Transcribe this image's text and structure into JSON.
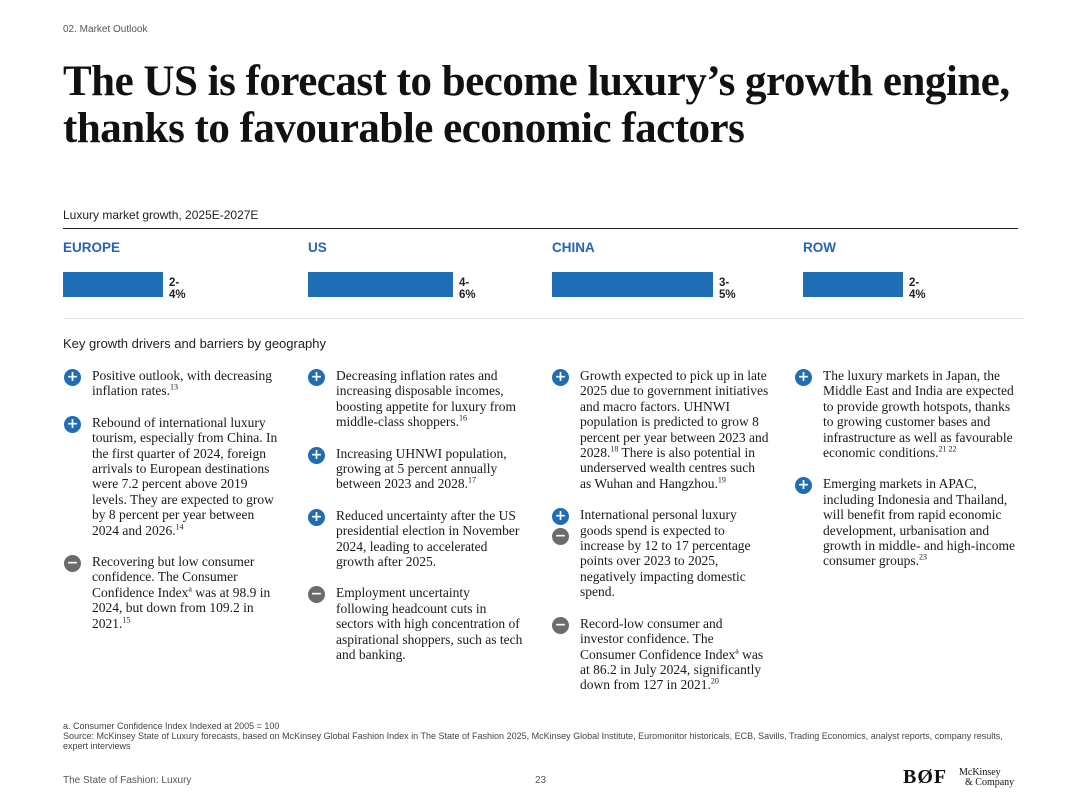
{
  "section_label": "02. Market Outlook",
  "headline": "The US is forecast to become luxury’s growth engine, thanks to favourable economic factors",
  "chart_title": "Luxury market growth, 2025E-2027E",
  "chart_data": {
    "type": "bar",
    "title": "Luxury market growth, 2025E-2027E",
    "categories": [
      "EUROPE",
      "US",
      "CHINA",
      "ROW"
    ],
    "ranges": [
      [
        2,
        4
      ],
      [
        4,
        6
      ],
      [
        3,
        5
      ],
      [
        2,
        4
      ]
    ],
    "labels": [
      "2-4%",
      "4-6%",
      "3-5%",
      "2-4%"
    ],
    "unit": "%"
  },
  "colors": {
    "accent": "#2563b8",
    "bar": "#1f6db5",
    "plus": "#1f6db5",
    "minus": "#6b6b6b"
  },
  "drivers_title": "Key growth drivers and barriers by geography",
  "drivers": {
    "europe": [
      {
        "text": "Positive outlook, with decreasing inflation rates.",
        "sup": "13"
      },
      {
        "text": "Rebound of international luxury tourism, especially from China. In the first quarter of 2024, foreign arrivals to European destinations were 7.2 percent above 2019 levels. They are expected to grow by 8 percent per year between 2024 and 2026.",
        "sup": "14"
      },
      {
        "text_a": "Recovering but low consumer confidence. The Consumer Confidence Index",
        "sup_a": "a",
        "text_b": " was at 98.9 in 2024, but down from 109.2 in 2021.",
        "sup": "15"
      }
    ],
    "us": [
      {
        "text": "Decreasing inflation rates and increasing disposable incomes, boosting appetite for luxury from middle-class shoppers.",
        "sup": "16"
      },
      {
        "text": "Increasing UHNWI population, growing at 5 percent annually between 2023 and 2028.",
        "sup": "17"
      },
      {
        "text": "Reduced uncertainty after the US presidential election in November 2024, leading to accelerated growth after 2025."
      },
      {
        "text": "Employment uncertainty following headcount cuts in sectors with high concentration of aspirational shoppers, such as tech and banking."
      }
    ],
    "china": [
      {
        "text_a": "Growth expected to pick up in late 2025 due to government initiatives and macro factors. UHNWI population is predicted to grow 8 percent per year between 2023 and 2028.",
        "sup_a": "18",
        "text_b": " There is also potential in underserved wealth centres such as Wuhan and Hangzhou.",
        "sup": "19"
      },
      {
        "text": "International personal luxury goods spend is expected to increase by 12 to 17 percentage points over 2023 to 2025, negatively impacting domestic spend."
      },
      {
        "text_a": "Record-low consumer and investor confidence. The Consumer Confidence Index",
        "sup_a": "a",
        "text_b": " was at 86.2 in July 2024, significantly down from 127 in 2021.",
        "sup": "20"
      }
    ],
    "row": [
      {
        "text": "The luxury markets in Japan, the Middle East and India are expected to provide growth hotspots, thanks to growing customer bases and infrastructure as well as favourable economic conditions.",
        "sup": "21 22"
      },
      {
        "text": "Emerging markets in APAC, including Indonesia and Thailand, will benefit from rapid economic development, urbanisation and growth in middle- and high-income consumer groups.",
        "sup": "23"
      }
    ]
  },
  "footnote": "a. Consumer Confidence Index Indexed at 2005 = 100",
  "source": "Source: McKinsey State of Luxury forecasts, based on McKinsey Global Fashion Index in The State of Fashion 2025, McKinsey Global Institute, Euromonitor historicals, ECB, Savills, Trading  Economics, analyst reports, company results, expert interviews",
  "footer": {
    "publication": "The State of Fashion: Luxury",
    "page": "23",
    "logo_bof": "BØF",
    "logo_mckinsey_line1": "McKinsey",
    "logo_mckinsey_line2": "& Company"
  }
}
